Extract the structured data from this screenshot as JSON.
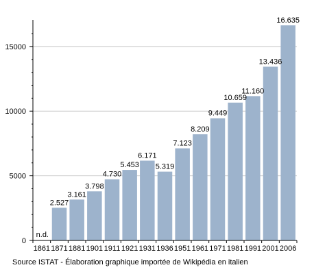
{
  "chart_data": {
    "type": "bar",
    "categories": [
      "1861",
      "1871",
      "1881",
      "1901",
      "1911",
      "1921",
      "1931",
      "1936",
      "1951",
      "1961",
      "1971",
      "1981",
      "1991",
      "2001",
      "2006"
    ],
    "values": [
      null,
      2527,
      3161,
      3798,
      4730,
      5453,
      6171,
      5319,
      7123,
      8209,
      9449,
      10659,
      11160,
      13436,
      16635
    ],
    "data_labels": [
      "n.d.",
      "2.527",
      "3.161",
      "3.798",
      "4.730",
      "5.453",
      "6.171",
      "5.319",
      "7.123",
      "8.209",
      "9.449",
      "10.659",
      "11.160",
      "13.436",
      "16.635"
    ],
    "y_ticks": [
      0,
      5000,
      10000,
      15000
    ],
    "y_tick_labels": [
      "0",
      "5000",
      "10000",
      "15000"
    ],
    "ylim": [
      0,
      16635
    ],
    "grid": true,
    "bar_color": "#9db3cc",
    "grid_color": "#c8c8c8",
    "title": "",
    "xlabel": "",
    "ylabel": ""
  },
  "caption": "Source ISTAT - Élaboration graphique importée de Wikipédia en italien"
}
